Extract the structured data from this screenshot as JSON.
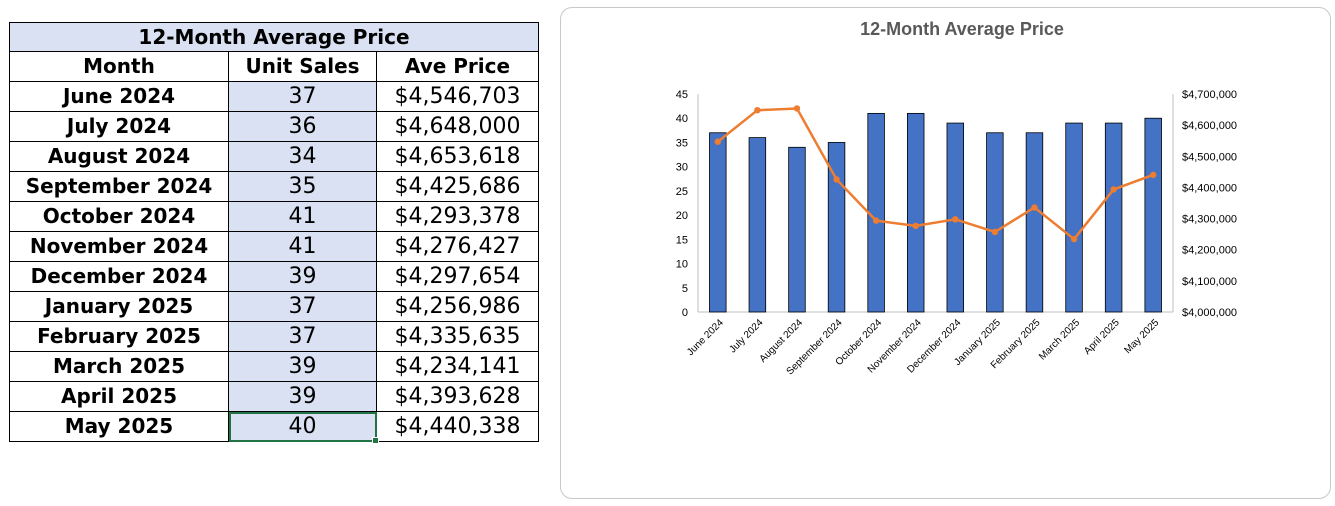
{
  "table": {
    "title": "12-Month Average Price",
    "headers": [
      "Month",
      "Unit Sales",
      "Ave Price"
    ],
    "rows": [
      [
        "June 2024",
        "37",
        "$4,546,703"
      ],
      [
        "July 2024",
        "36",
        "$4,648,000"
      ],
      [
        "August 2024",
        "34",
        "$4,653,618"
      ],
      [
        "September 2024",
        "35",
        "$4,425,686"
      ],
      [
        "October 2024",
        "41",
        "$4,293,378"
      ],
      [
        "November 2024",
        "41",
        "$4,276,427"
      ],
      [
        "December 2024",
        "39",
        "$4,297,654"
      ],
      [
        "January 2025",
        "37",
        "$4,256,986"
      ],
      [
        "February 2025",
        "37",
        "$4,335,635"
      ],
      [
        "March 2025",
        "39",
        "$4,234,141"
      ],
      [
        "April 2025",
        "39",
        "$4,393,628"
      ],
      [
        "May 2025",
        "40",
        "$4,440,338"
      ]
    ]
  },
  "colors": {
    "bar": "#4472c4",
    "line": "#ed7d31",
    "table_header_fill": "#d9e1f2",
    "selection": "#217346"
  },
  "chart_data": {
    "type": "bar",
    "title": "12-Month Average Price",
    "categories": [
      "June 2024",
      "July 2024",
      "August 2024",
      "September 2024",
      "October 2024",
      "November 2024",
      "December 2024",
      "January 2025",
      "February 2025",
      "March 2025",
      "April 2025",
      "May 2025"
    ],
    "series": [
      {
        "type": "bar",
        "axis": "left",
        "values": [
          37,
          36,
          34,
          35,
          41,
          41,
          39,
          37,
          37,
          39,
          39,
          40
        ]
      },
      {
        "type": "line",
        "axis": "right",
        "values": [
          4546703,
          4648000,
          4653618,
          4425686,
          4293378,
          4276427,
          4297654,
          4256986,
          4335635,
          4234141,
          4393628,
          4440338
        ]
      }
    ],
    "y_left": {
      "lim": [
        0,
        45
      ],
      "ticks": [
        "0",
        "5",
        "10",
        "15",
        "20",
        "25",
        "30",
        "35",
        "40",
        "45"
      ]
    },
    "y_right": {
      "lim": [
        4000000,
        4700000
      ],
      "ticks": [
        "$4,000,000",
        "$4,100,000",
        "$4,200,000",
        "$4,300,000",
        "$4,400,000",
        "$4,500,000",
        "$4,600,000",
        "$4,700,000"
      ]
    },
    "grid": false,
    "legend": "none"
  }
}
